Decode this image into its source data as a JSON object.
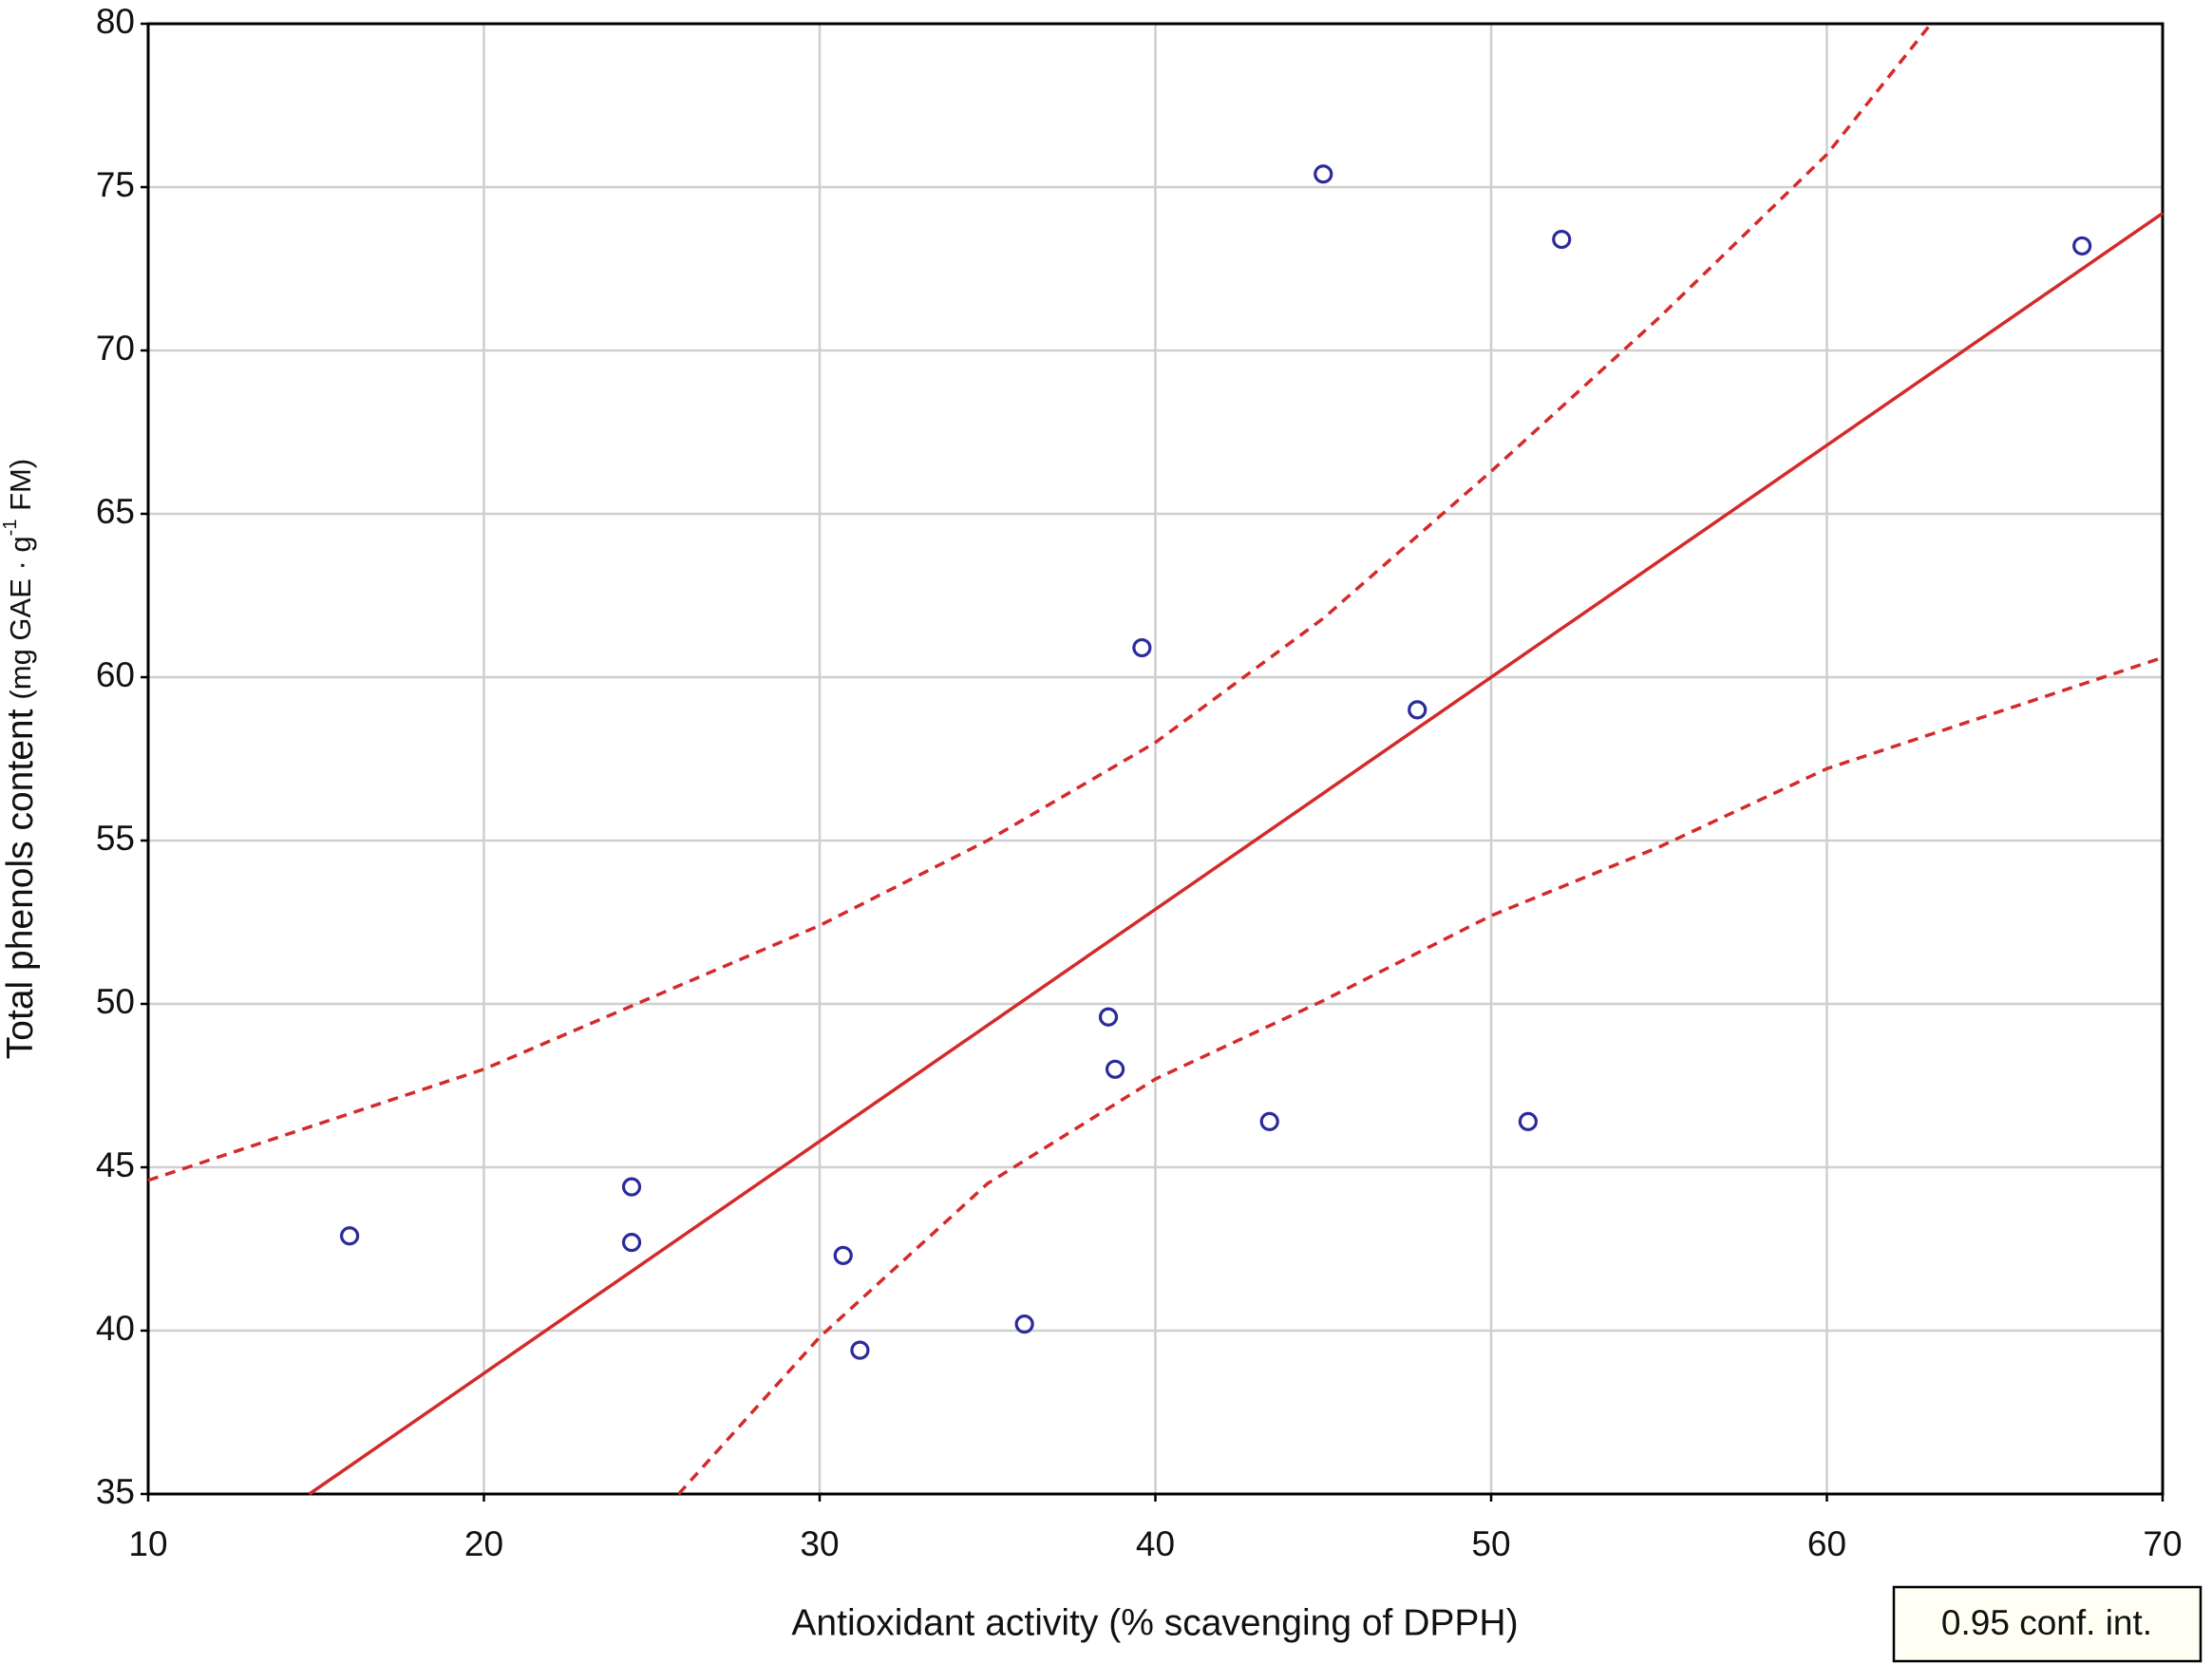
{
  "chart_data": {
    "type": "scatter",
    "x_label": "Antioxidant activity (% scavenging of DPPH)",
    "y_label": [
      "Total phenols content",
      "(mg GAE · g",
      "-1",
      " FM)"
    ],
    "xlim": [
      10,
      70
    ],
    "xticks": [
      10,
      20,
      30,
      40,
      50,
      60,
      70
    ],
    "ylim": [
      35,
      80
    ],
    "yticks": [
      35,
      40,
      45,
      50,
      55,
      60,
      65,
      70,
      75,
      80
    ],
    "grid": true,
    "series": [
      {
        "style": "markers",
        "color": "#2b2b9a",
        "x": [
          16.0,
          24.4,
          24.4,
          30.7,
          31.2,
          36.1,
          38.6,
          38.8,
          39.6,
          43.4,
          45.0,
          47.8,
          51.1,
          52.1,
          67.6
        ],
        "y": [
          42.9,
          44.4,
          42.7,
          42.3,
          39.4,
          40.2,
          49.6,
          48.0,
          60.9,
          46.4,
          75.4,
          59.0,
          46.4,
          73.4,
          73.2
        ]
      },
      {
        "style": "solid",
        "color": "#d42a2a",
        "x": [
          14.8,
          70
        ],
        "y": [
          35,
          74.2
        ]
      },
      {
        "name": "0.95 conf. int.",
        "style": "dashed",
        "color": "#d42a2a",
        "x": [
          10,
          20,
          30,
          35,
          40,
          45,
          50,
          55,
          60,
          63.1
        ],
        "y": [
          44.6,
          48.0,
          52.4,
          55.0,
          58.0,
          61.8,
          66.3,
          71.0,
          76.0,
          80
        ]
      },
      {
        "style": "dashed",
        "color": "#d42a2a",
        "x": [
          25.8,
          30,
          35,
          40,
          45,
          50,
          55,
          60,
          65,
          70
        ],
        "y": [
          35,
          39.8,
          44.5,
          47.7,
          50.1,
          52.7,
          54.8,
          57.2,
          58.9,
          60.6
        ]
      }
    ]
  }
}
